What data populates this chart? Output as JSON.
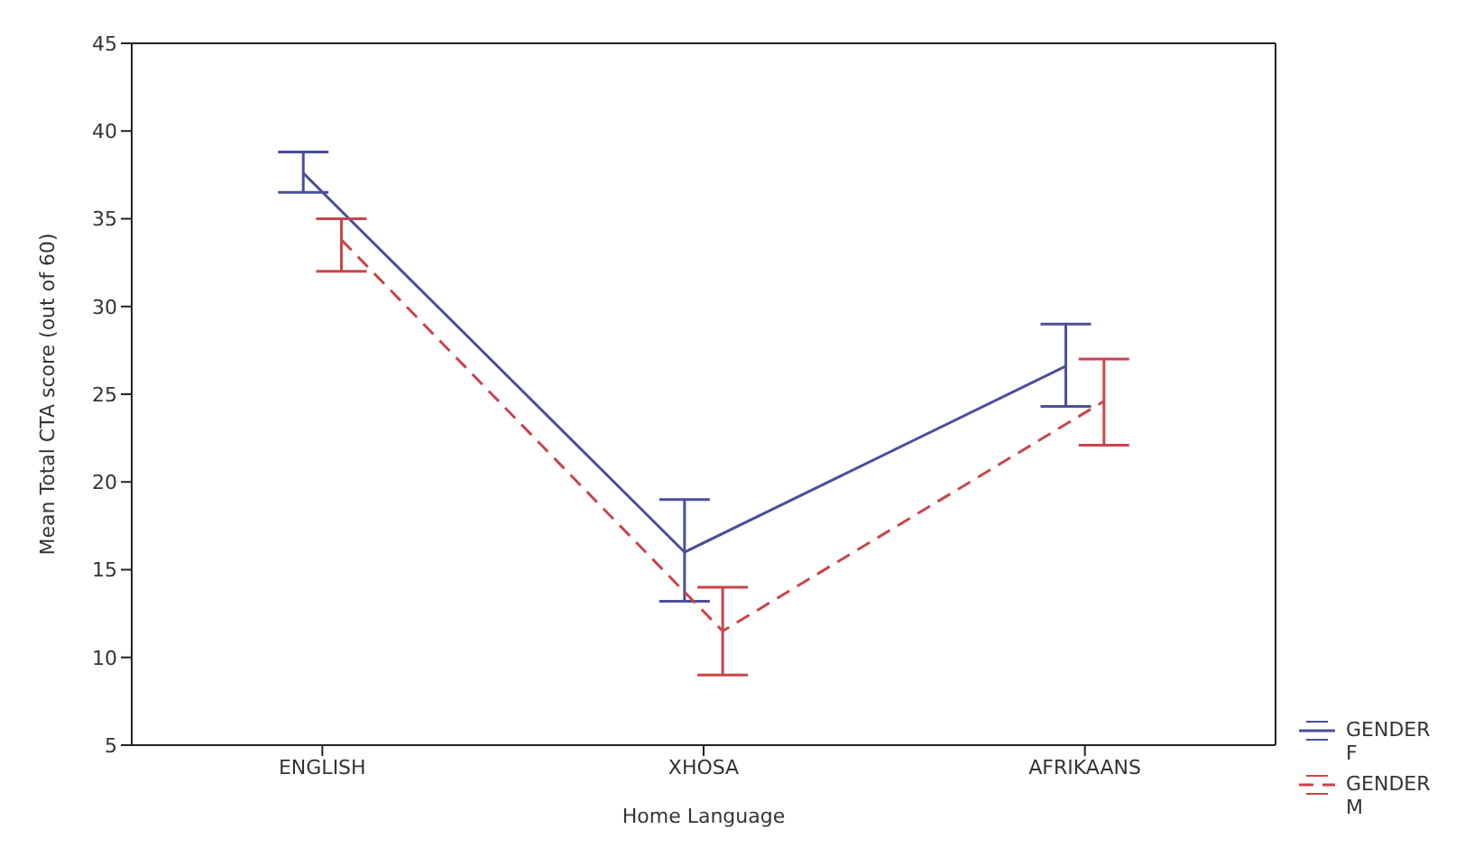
{
  "chart_data": {
    "type": "line",
    "categories": [
      "ENGLISH",
      "XHOSA",
      "AFRIKAANS"
    ],
    "xlabel": "Home Language",
    "ylabel": "Mean Total CTA score (out of 60)",
    "series": [
      {
        "name": "GENDER F",
        "color": "#4a4f9a",
        "line_style": "solid",
        "values": [
          37.6,
          16.0,
          26.6
        ],
        "errors": [
          [
            36.5,
            38.8
          ],
          [
            13.2,
            19.0
          ],
          [
            24.3,
            29.0
          ]
        ]
      },
      {
        "name": "GENDER M",
        "color": "#c8454a",
        "line_style": "dashed",
        "values": [
          33.8,
          11.5,
          24.6
        ],
        "errors": [
          [
            32.0,
            35.0
          ],
          [
            9.0,
            14.0
          ],
          [
            22.1,
            27.0
          ]
        ]
      }
    ],
    "ylim": [
      5,
      45
    ],
    "yticks": [
      5,
      10,
      15,
      20,
      25,
      30,
      35,
      40,
      45
    ],
    "grid": false,
    "legend": "bottom right",
    "marker": "none"
  }
}
